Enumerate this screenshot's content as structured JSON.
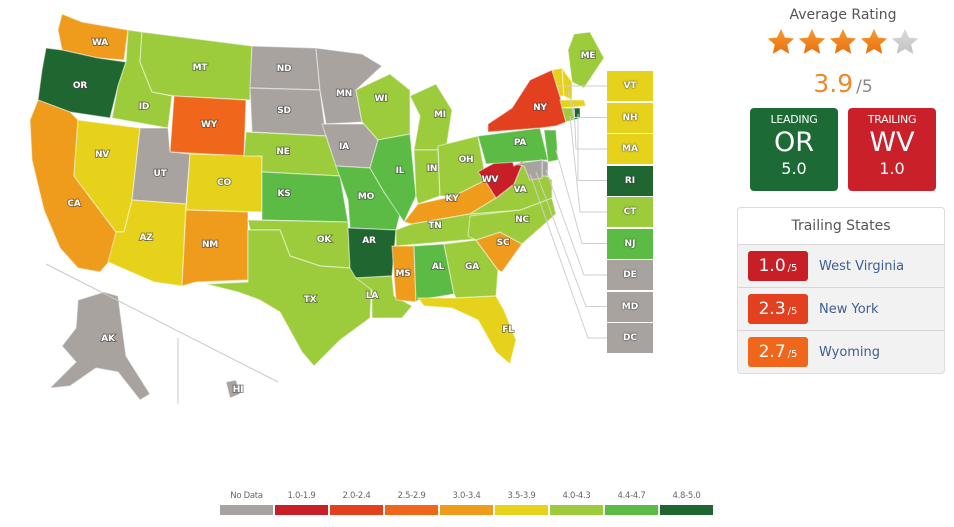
{
  "colors": {
    "no_data": "#a8a39f",
    "r1": "#c81f27",
    "r2": "#e2401e",
    "r25": "#f0661a",
    "r3": "#ef9c1c",
    "r35": "#e6d21a",
    "r4": "#9ccc3c",
    "r44": "#5bbb45",
    "r48": "#1f6630"
  },
  "summary": {
    "title": "Average Rating",
    "stars_filled": 4,
    "stars_total": 5,
    "score": "3.9",
    "score_suffix": "/5",
    "leading": {
      "label": "LEADING",
      "state": "OR",
      "value": "5.0"
    },
    "trailing": {
      "label": "TRAILING",
      "state": "WV",
      "value": "1.0"
    }
  },
  "trailing_states": {
    "title": "Trailing States",
    "items": [
      {
        "value": "1.0",
        "suffix": "/5",
        "name": "West Virginia",
        "color": "#c81f27"
      },
      {
        "value": "2.3",
        "suffix": "/5",
        "name": "New York",
        "color": "#e2401e"
      },
      {
        "value": "2.7",
        "suffix": "/5",
        "name": "Wyoming",
        "color": "#f0661a"
      }
    ]
  },
  "legend": [
    {
      "label": "No Data",
      "color": "#a8a39f"
    },
    {
      "label": "1.0-1.9",
      "color": "#c81f27"
    },
    {
      "label": "2.0-2.4",
      "color": "#e2401e"
    },
    {
      "label": "2.5-2.9",
      "color": "#f0661a"
    },
    {
      "label": "3.0-3.4",
      "color": "#ef9c1c"
    },
    {
      "label": "3.5-3.9",
      "color": "#e6d21a"
    },
    {
      "label": "4.0-4.3",
      "color": "#9ccc3c"
    },
    {
      "label": "4.4-4.7",
      "color": "#5bbb45"
    },
    {
      "label": "4.8-5.0",
      "color": "#1f6630"
    }
  ],
  "small_states": [
    {
      "abbr": "VT",
      "color": "#e6d21a"
    },
    {
      "abbr": "NH",
      "color": "#e6d21a"
    },
    {
      "abbr": "MA",
      "color": "#e6d21a"
    },
    {
      "abbr": "RI",
      "color": "#1f6630"
    },
    {
      "abbr": "CT",
      "color": "#9ccc3c"
    },
    {
      "abbr": "NJ",
      "color": "#5bbb45"
    },
    {
      "abbr": "DE",
      "color": "#a8a39f"
    },
    {
      "abbr": "MD",
      "color": "#a8a39f"
    },
    {
      "abbr": "DC",
      "color": "#a8a39f"
    }
  ],
  "states": {
    "WA": "r3",
    "OR": "r48",
    "CA": "r3",
    "ID": "r4",
    "NV": "r35",
    "MT": "r4",
    "WY": "r25",
    "UT": "no_data",
    "CO": "r35",
    "AZ": "r35",
    "NM": "r3",
    "ND": "no_data",
    "SD": "no_data",
    "NE": "r4",
    "KS": "r44",
    "OK": "r4",
    "TX": "r4",
    "MN": "no_data",
    "IA": "no_data",
    "MO": "r44",
    "AR": "r48",
    "LA": "r4",
    "WI": "r4",
    "IL": "r44",
    "MS": "r3",
    "MI": "r4",
    "IN": "r4",
    "OH": "r4",
    "KY": "r3",
    "TN": "r4",
    "AL": "r44",
    "GA": "r4",
    "FL": "r35",
    "SC": "r3",
    "NC": "r4",
    "VA": "r4",
    "WV": "r1",
    "PA": "r44",
    "NY": "r2",
    "ME": "r4",
    "VT": "r35",
    "NH": "r35",
    "MA": "r35",
    "CT": "r4",
    "NJ": "r44",
    "RI": "r48",
    "DE": "no_data",
    "MD": "no_data",
    "AK": "no_data",
    "HI": "no_data"
  }
}
